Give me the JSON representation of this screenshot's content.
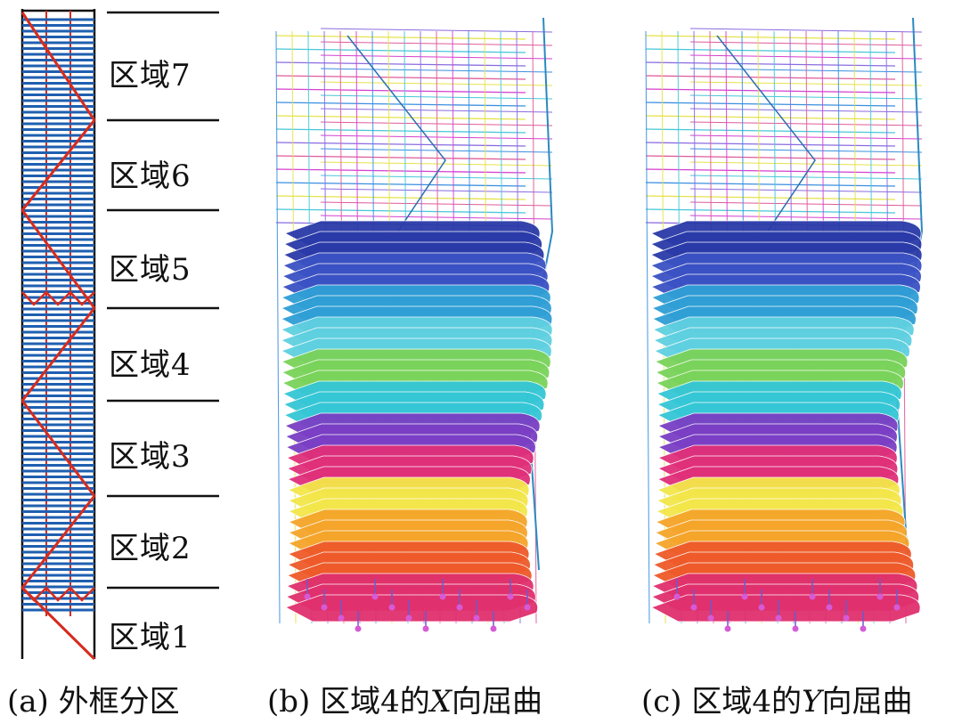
{
  "zones": [
    {
      "label": "区域7"
    },
    {
      "label": "区域6"
    },
    {
      "label": "区域5"
    },
    {
      "label": "区域4"
    },
    {
      "label": "区域3"
    },
    {
      "label": "区域2"
    },
    {
      "label": "区域1"
    }
  ],
  "captions": {
    "a": "(a) 外框分区",
    "b_prefix": "(b) 区域4的",
    "b_axis": "X",
    "b_suffix": "向屈曲",
    "c_prefix": "(c) 区域4的",
    "c_axis": "Y",
    "c_suffix": "向屈曲"
  },
  "colors": {
    "floor_lines": "#1f5fb0",
    "brace": "#d62b1f",
    "outline": "#111111",
    "mode_bands": [
      "#2a3aa8",
      "#3b52c4",
      "#2f9fd6",
      "#5fd0e0",
      "#7ad35a",
      "#35c7d6",
      "#7a3fc4",
      "#e0307a",
      "#f3e64a",
      "#f5a52a",
      "#ee5a2a",
      "#e0306e"
    ]
  }
}
